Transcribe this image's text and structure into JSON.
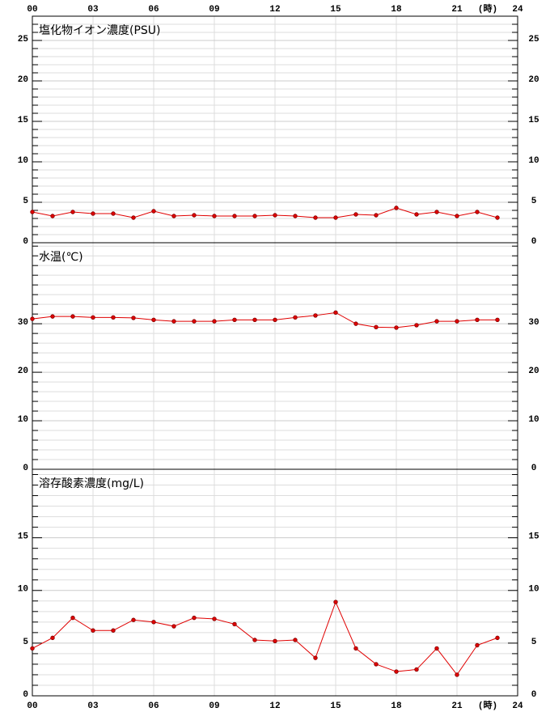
{
  "chart_data": [
    {
      "type": "line",
      "title": "塩化物イオン濃度(PSU)",
      "x_label": "(時)",
      "x": [
        0,
        1,
        2,
        3,
        4,
        5,
        6,
        7,
        8,
        9,
        10,
        11,
        12,
        13,
        14,
        15,
        16,
        17,
        18,
        19,
        20,
        21,
        22,
        23
      ],
      "series": [
        {
          "color": "#e00000",
          "values": [
            3.8,
            3.3,
            3.8,
            3.6,
            3.6,
            3.1,
            3.9,
            3.3,
            3.4,
            3.3,
            3.3,
            3.3,
            3.4,
            3.3,
            3.1,
            3.1,
            3.5,
            3.4,
            4.3,
            3.5,
            3.8,
            3.3,
            3.8,
            3.1
          ]
        }
      ],
      "xlim": [
        0,
        24
      ],
      "xticks": [
        {
          "value": 0,
          "label": "00"
        },
        {
          "value": 3,
          "label": "03"
        },
        {
          "value": 6,
          "label": "06"
        },
        {
          "value": 9,
          "label": "09"
        },
        12,
        15,
        18,
        21,
        24
      ],
      "ylim": [
        0,
        28
      ],
      "yticks": [
        0,
        5,
        10,
        15,
        20,
        25
      ],
      "minor_yticks": [
        1,
        2,
        3,
        4,
        6,
        7,
        8,
        9,
        11,
        12,
        13,
        14,
        16,
        17,
        18,
        19,
        21,
        22,
        23,
        24,
        26,
        27
      ]
    },
    {
      "type": "line",
      "title": "水温(℃)",
      "x": [
        0,
        1,
        2,
        3,
        4,
        5,
        6,
        7,
        8,
        9,
        10,
        11,
        12,
        13,
        14,
        15,
        16,
        17,
        18,
        19,
        20,
        21,
        22,
        23
      ],
      "series": [
        {
          "color": "#e00000",
          "values": [
            31.0,
            31.5,
            31.5,
            31.3,
            31.3,
            31.2,
            30.8,
            30.5,
            30.5,
            30.5,
            30.8,
            30.8,
            30.8,
            31.3,
            31.7,
            32.3,
            30.0,
            29.3,
            29.2,
            29.7,
            30.5,
            30.5,
            30.8,
            30.8
          ]
        }
      ],
      "xlim": [
        0,
        24
      ],
      "xticks": [
        {
          "value": 0,
          "label": "00"
        },
        {
          "value": 3,
          "label": "03"
        },
        {
          "value": 6,
          "label": "06"
        },
        {
          "value": 9,
          "label": "09"
        },
        12,
        15,
        18,
        21,
        24
      ],
      "ylim": [
        0,
        46.7
      ],
      "yticks": [
        0,
        10,
        20,
        30
      ],
      "minor_yticks": [
        2,
        4,
        6,
        8,
        12,
        14,
        16,
        18,
        22,
        24,
        26,
        28,
        32,
        34,
        36,
        38,
        40,
        42,
        44,
        46
      ]
    },
    {
      "type": "line",
      "title": "溶存酸素濃度(mg/L)",
      "x_label": "(時)",
      "x": [
        0,
        1,
        2,
        3,
        4,
        5,
        6,
        7,
        8,
        9,
        10,
        11,
        12,
        13,
        14,
        15,
        16,
        17,
        18,
        19,
        20,
        21,
        22,
        23
      ],
      "series": [
        {
          "color": "#e00000",
          "values": [
            4.5,
            5.5,
            7.4,
            6.2,
            6.2,
            7.2,
            7.0,
            6.6,
            7.4,
            7.3,
            6.8,
            5.3,
            5.2,
            5.3,
            3.6,
            8.9,
            4.5,
            3.0,
            2.3,
            2.5,
            4.5,
            2.0,
            4.8,
            5.5
          ]
        }
      ],
      "xlim": [
        0,
        24
      ],
      "xticks": [
        {
          "value": 0,
          "label": "00"
        },
        {
          "value": 3,
          "label": "03"
        },
        {
          "value": 6,
          "label": "06"
        },
        {
          "value": 9,
          "label": "09"
        },
        12,
        15,
        18,
        21,
        24
      ],
      "ylim": [
        0,
        21.5
      ],
      "yticks": [
        0,
        5,
        10,
        15
      ],
      "minor_yticks": [
        1,
        2,
        3,
        4,
        6,
        7,
        8,
        9,
        11,
        12,
        13,
        14,
        16,
        17,
        18,
        19,
        20,
        21
      ]
    }
  ]
}
